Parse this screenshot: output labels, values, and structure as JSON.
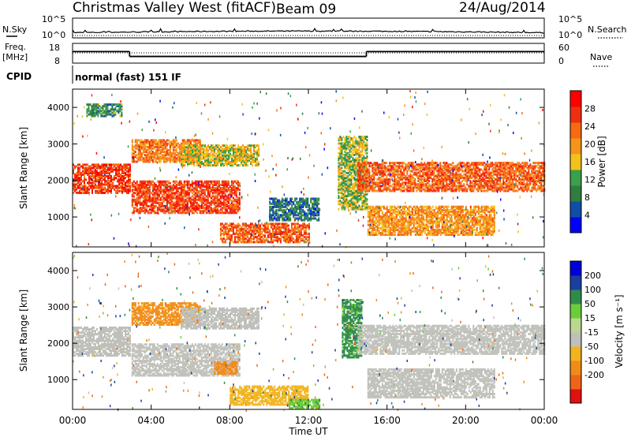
{
  "header": {
    "station": "Christmas Valley West (fitACF)",
    "beam": "Beam 09",
    "date": "24/Aug/2014"
  },
  "left_labels": {
    "nsky": "N.Sky",
    "freq_line1": "Freq.",
    "freq_line2": "[MHz]",
    "cpid": "CPID"
  },
  "right_labels": {
    "nsearch": "N.Search",
    "nave": "Nave"
  },
  "cpid_text": "normal (fast) 151 IF",
  "x_axis_label": "Time UT",
  "colors": {
    "power": [
      "#0000ff",
      "#0f4ea8",
      "#2f7d3f",
      "#3aa04a",
      "#f2c21a",
      "#f59418",
      "#f56a12",
      "#ef2f10",
      "#ff0000"
    ],
    "velocity": [
      "#e21010",
      "#f06515",
      "#f28a18",
      "#f2b31c",
      "#c0c0bb",
      "#b9d88e",
      "#6ccd3a",
      "#2f8b4a",
      "#1a3fa0",
      "#0000d8"
    ]
  },
  "chart_data": [
    {
      "type": "line",
      "name": "noise_search_strip",
      "x_range_hours": [
        0,
        24
      ],
      "left_axis": {
        "label": "N.Sky",
        "ticks": [
          "10^5",
          "10^0"
        ]
      },
      "right_axis": {
        "label": "N.Search",
        "ticks": [
          "10^5",
          "10^0"
        ]
      }
    },
    {
      "type": "line",
      "name": "frequency_strip",
      "x_range_hours": [
        0,
        24
      ],
      "left_axis": {
        "label": "Freq. [MHz]",
        "ticks": [
          18,
          8
        ]
      },
      "right_axis": {
        "label": "Nave",
        "ticks": [
          60,
          0
        ]
      },
      "freq_segments": [
        {
          "t0": 0.0,
          "t1": 2.9,
          "mhz": 13.6
        },
        {
          "t0": 2.9,
          "t1": 14.95,
          "mhz": 10.4
        },
        {
          "t0": 14.95,
          "t1": 24.0,
          "mhz": 13.6
        }
      ]
    },
    {
      "type": "heatmap",
      "name": "power_rti",
      "x_range_hours": [
        0,
        24
      ],
      "y_range_km": [
        180,
        4500
      ],
      "ylabel": "Slant Range [km]",
      "y_ticks": [
        1000,
        2000,
        3000,
        4000
      ],
      "x_ticks": [
        "00:00",
        "04:00",
        "08:00",
        "12:00",
        "16:00",
        "20:00",
        "00:00"
      ],
      "colorbar": {
        "label": "Power [dB]",
        "range": [
          0,
          32
        ],
        "ticks": [
          4,
          8,
          12,
          16,
          20,
          24,
          28
        ]
      },
      "echo_regions": [
        {
          "t0": 0.0,
          "t1": 2.9,
          "r0": 1650,
          "r1": 2450,
          "db": 26
        },
        {
          "t0": 0.7,
          "t1": 2.5,
          "r0": 3750,
          "r1": 4100,
          "db": 10
        },
        {
          "t0": 3.0,
          "t1": 6.5,
          "r0": 2500,
          "r1": 3100,
          "db": 22
        },
        {
          "t0": 3.0,
          "t1": 8.5,
          "r0": 1100,
          "r1": 2000,
          "db": 26
        },
        {
          "t0": 5.5,
          "t1": 9.5,
          "r0": 2400,
          "r1": 2950,
          "db": 16
        },
        {
          "t0": 7.5,
          "t1": 12.0,
          "r0": 300,
          "r1": 800,
          "db": 24
        },
        {
          "t0": 10.0,
          "t1": 12.5,
          "r0": 900,
          "r1": 1500,
          "db": 8
        },
        {
          "t0": 13.5,
          "t1": 15.0,
          "r0": 1200,
          "r1": 3200,
          "db": 14
        },
        {
          "t0": 14.5,
          "t1": 24.0,
          "r0": 1700,
          "r1": 2500,
          "db": 24
        },
        {
          "t0": 15.0,
          "t1": 21.5,
          "r0": 500,
          "r1": 1300,
          "db": 20
        }
      ]
    },
    {
      "type": "heatmap",
      "name": "velocity_rti",
      "x_range_hours": [
        0,
        24
      ],
      "y_range_km": [
        180,
        4500
      ],
      "ylabel": "Slant Range [km]",
      "xlabel": "Time UT",
      "y_ticks": [
        1000,
        2000,
        3000,
        4000
      ],
      "x_ticks": [
        "00:00",
        "04:00",
        "08:00",
        "12:00",
        "16:00",
        "20:00",
        "00:00"
      ],
      "colorbar": {
        "label": "Velocity [m s⁻¹]",
        "ticks": [
          200,
          100,
          50,
          15,
          -15,
          -50,
          -100,
          -200
        ]
      },
      "echo_regions": [
        {
          "t0": 0.0,
          "t1": 2.9,
          "r0": 1650,
          "r1": 2450,
          "v": 0
        },
        {
          "t0": 3.0,
          "t1": 6.5,
          "r0": 2500,
          "r1": 3100,
          "v": -60
        },
        {
          "t0": 3.0,
          "t1": 8.5,
          "r0": 1100,
          "r1": 2000,
          "v": 0
        },
        {
          "t0": 5.5,
          "t1": 9.5,
          "r0": 2400,
          "r1": 2950,
          "v": 0
        },
        {
          "t0": 7.2,
          "t1": 8.4,
          "r0": 1150,
          "r1": 1500,
          "v": -80
        },
        {
          "t0": 8.0,
          "t1": 12.0,
          "r0": 300,
          "r1": 800,
          "v": -30
        },
        {
          "t0": 11.0,
          "t1": 12.6,
          "r0": 200,
          "r1": 450,
          "v": 40
        },
        {
          "t0": 13.7,
          "t1": 14.7,
          "r0": 1600,
          "r1": 3200,
          "v": 60
        },
        {
          "t0": 14.5,
          "t1": 24.0,
          "r0": 1700,
          "r1": 2500,
          "v": 0
        },
        {
          "t0": 15.0,
          "t1": 21.5,
          "r0": 500,
          "r1": 1300,
          "v": 0
        }
      ]
    }
  ]
}
